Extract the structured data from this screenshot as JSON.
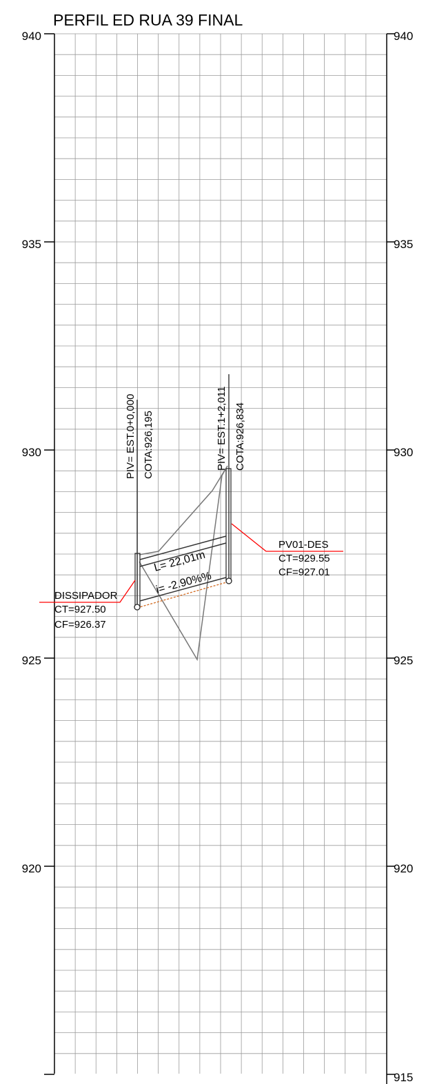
{
  "title": "PERFIL ED RUA 39 FINAL",
  "axis": {
    "ymin": 915,
    "ymax": 940,
    "major_ticks": [
      "940",
      "935",
      "930",
      "925",
      "920"
    ],
    "bottom_right_tick": "915"
  },
  "piv_start": {
    "station": "PIV= EST.0+0,000",
    "cota": "COTA:926,195"
  },
  "piv_end": {
    "station": "PIV= EST.1+2,011",
    "cota": "COTA:926,834"
  },
  "segment": {
    "length": "L= 22,01m",
    "slope": "i= -2.90%%"
  },
  "structures": {
    "dissipador": {
      "name": "DISSIPADOR",
      "ct": "CT=927.50",
      "cf": "CF=926.37"
    },
    "pv01": {
      "name": "PV01-DES",
      "ct": "CT=929.55",
      "cf": "CF=927.01"
    }
  },
  "colors": {
    "grid": "#9a9a9a",
    "leader": "#ff0000",
    "invert_dashed": "#d2691e",
    "pipe": "#333333",
    "terrain": "#777777"
  }
}
